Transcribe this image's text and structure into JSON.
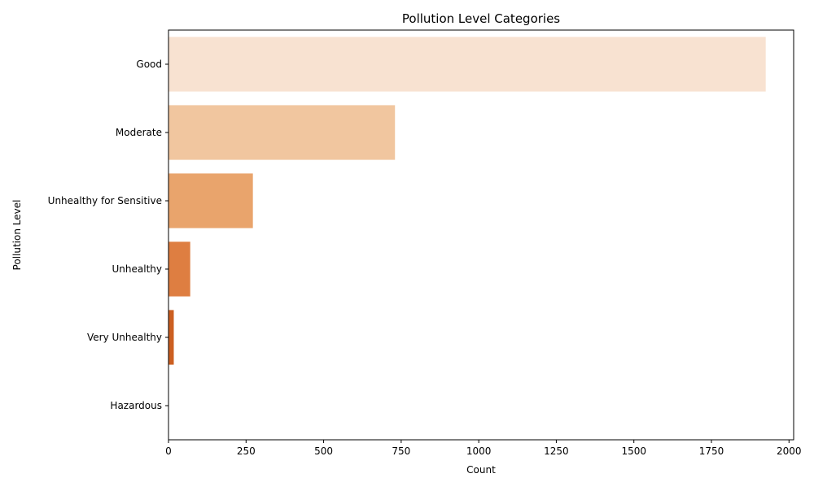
{
  "chart_data": {
    "type": "bar",
    "orientation": "horizontal",
    "title": "Pollution Level Categories",
    "xlabel": "Count",
    "ylabel": "Pollution Level",
    "categories": [
      "Good",
      "Moderate",
      "Unhealthy for Sensitive",
      "Unhealthy",
      "Very Unhealthy",
      "Hazardous"
    ],
    "values": [
      1925,
      730,
      272,
      70,
      17,
      1
    ],
    "colors": [
      "#f8e2d1",
      "#f1c69f",
      "#e9a46c",
      "#de7e41",
      "#cc5f21",
      "#a94710"
    ],
    "xlim": [
      0,
      2015
    ],
    "xticks": [
      0,
      250,
      500,
      750,
      1000,
      1250,
      1500,
      1750,
      2000
    ],
    "xtick_labels": [
      "0",
      "250",
      "500",
      "750",
      "1000",
      "1250",
      "1500",
      "1750",
      "2000"
    ],
    "grid": false,
    "legend": "none"
  }
}
